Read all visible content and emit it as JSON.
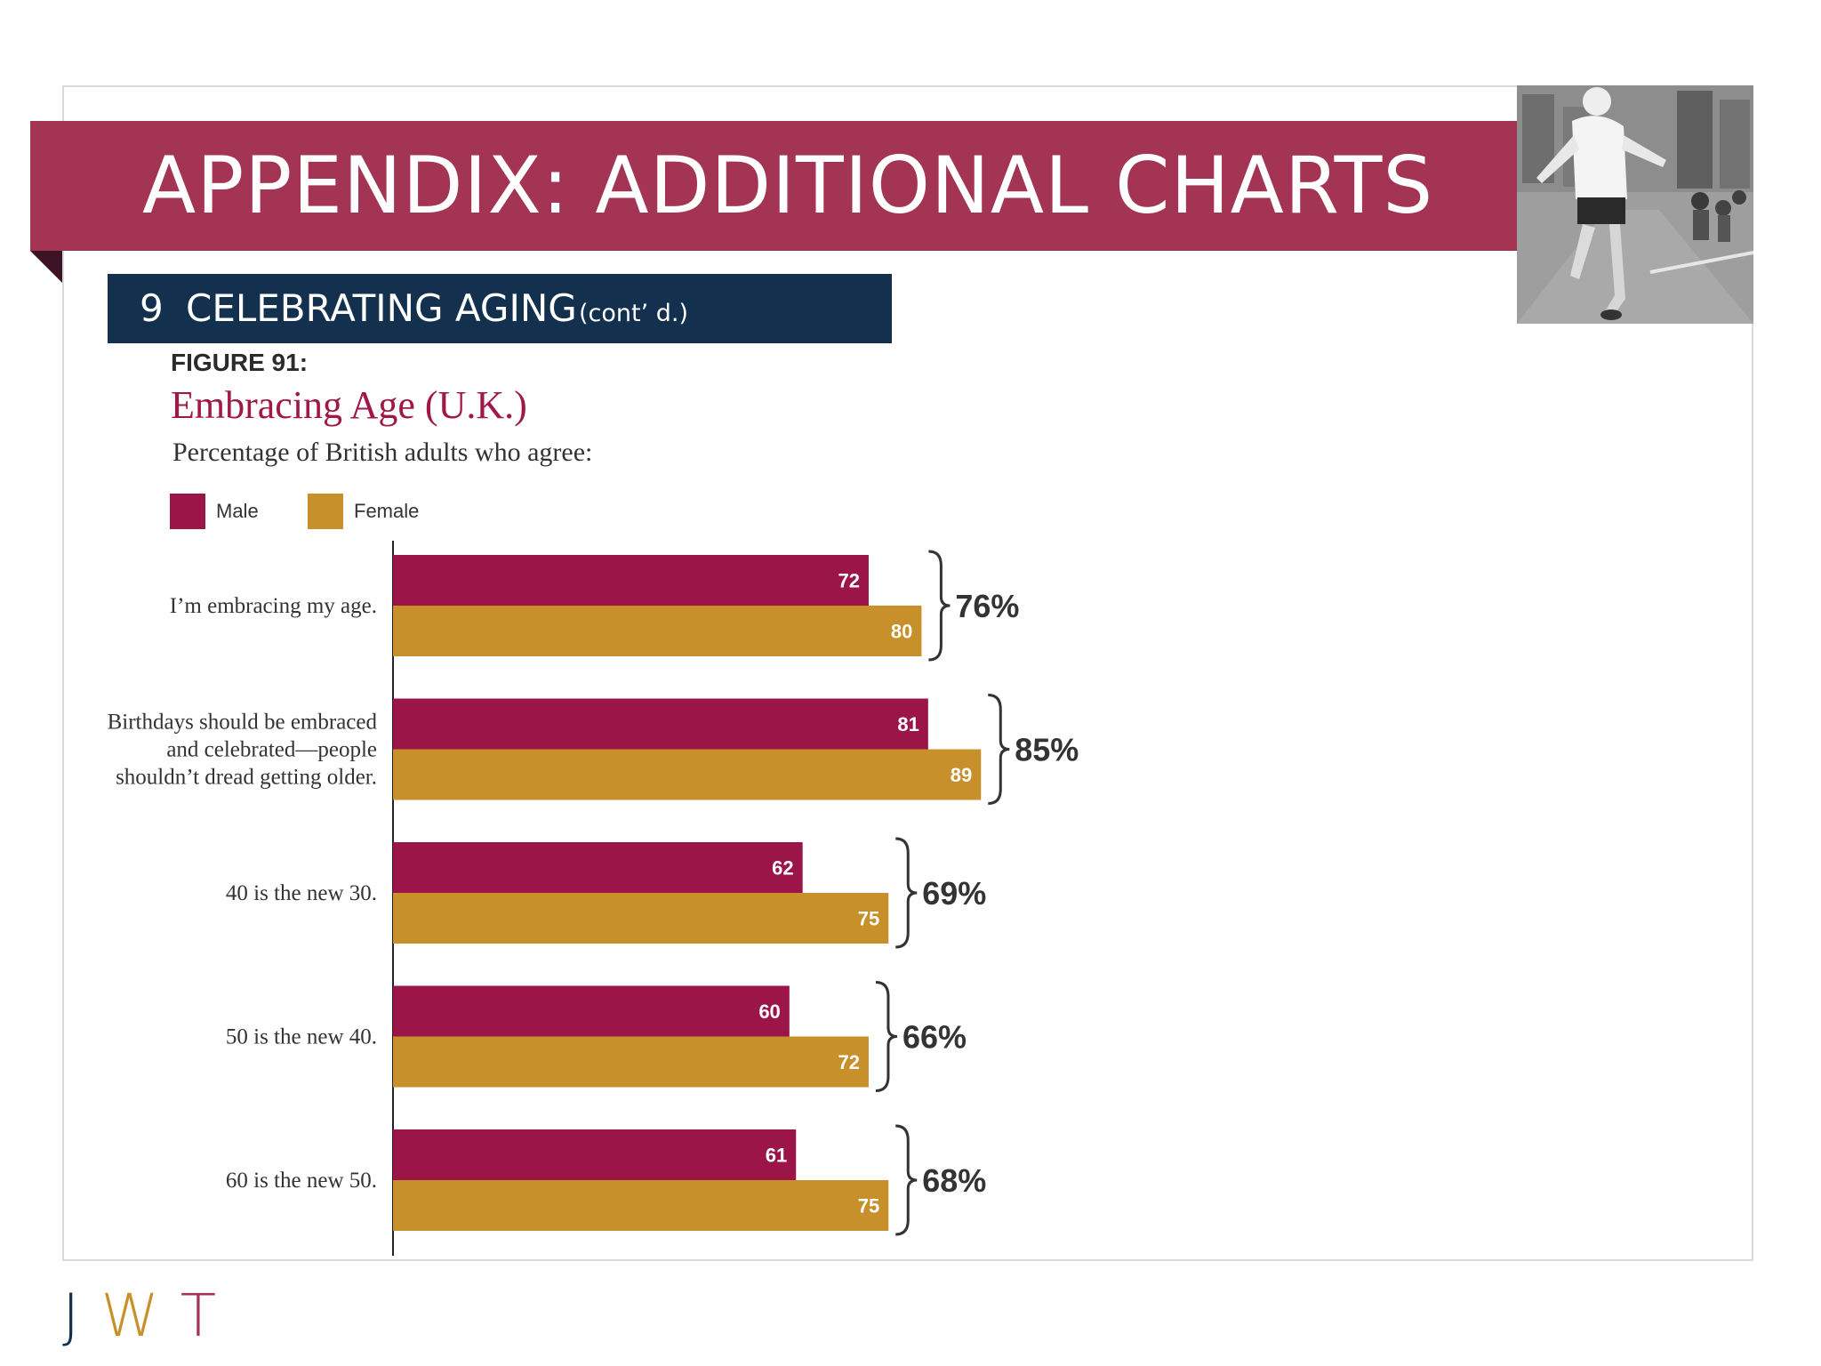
{
  "slide": {
    "title": "APPENDIX: ADDITIONAL CHARTS",
    "section_number": "9",
    "section_title": "CELEBRATING AGING",
    "section_subtitle": "(cont’ d.)",
    "figure_label": "FIGURE 91:",
    "logo": {
      "j": "J",
      "w": "W",
      "t": "T"
    }
  },
  "colors": {
    "banner": "#a33454",
    "section_bar": "#13304f",
    "male": "#9b1548",
    "female": "#c7902a"
  },
  "chart_data": {
    "type": "bar",
    "orientation": "horizontal",
    "title": "Embracing Age (U.K.)",
    "subtitle": "Percentage of British adults who agree:",
    "categories": [
      "I’m embracing my age.",
      "Birthdays should be embraced and celebrated—people shouldn’t dread getting older.",
      "40 is the new 30.",
      "50 is the new 40.",
      "60 is the new 50."
    ],
    "category_lines": [
      [
        "I’m embracing my age."
      ],
      [
        "Birthdays should be embraced",
        "and celebrated—people",
        "shouldn’t dread getting older."
      ],
      [
        "40 is the new 30."
      ],
      [
        "50 is the new 40."
      ],
      [
        "60 is the new 50."
      ]
    ],
    "series": [
      {
        "name": "Male",
        "values": [
          72,
          81,
          62,
          60,
          61
        ]
      },
      {
        "name": "Female",
        "values": [
          80,
          89,
          75,
          72,
          75
        ]
      }
    ],
    "totals": [
      "76%",
      "85%",
      "69%",
      "66%",
      "68%"
    ],
    "legend_position": "top-left",
    "grid": false
  }
}
